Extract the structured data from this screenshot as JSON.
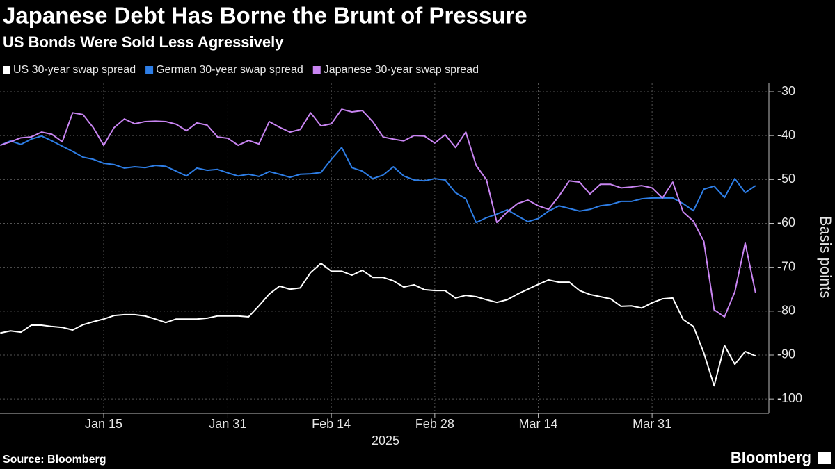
{
  "chart_data": {
    "type": "line",
    "title": "Japanese Debt Has Borne the Brunt of Pressure",
    "subtitle": "US Bonds Were Sold Less Agressively",
    "xlabel": "2025",
    "ylabel": "Basis points",
    "source": "Source: Bloomberg",
    "brand": "Bloomberg",
    "categories": [
      null,
      null,
      null,
      null,
      null,
      null,
      null,
      null,
      null,
      null,
      "Jan 15",
      null,
      null,
      null,
      null,
      null,
      null,
      null,
      null,
      null,
      null,
      null,
      "Jan 31",
      null,
      null,
      null,
      null,
      null,
      null,
      null,
      null,
      null,
      "Feb 14",
      null,
      null,
      null,
      null,
      null,
      null,
      null,
      null,
      null,
      "Feb 28",
      null,
      null,
      null,
      null,
      null,
      null,
      null,
      null,
      null,
      "Mar 14",
      null,
      null,
      null,
      null,
      null,
      null,
      null,
      null,
      null,
      null,
      "Mar 31",
      null,
      null,
      null,
      null,
      null,
      null,
      null,
      null,
      null,
      null
    ],
    "series": [
      {
        "name": "US 30-year swap spread",
        "color": "#ffffff",
        "values": [
          -85.0,
          -84.5,
          -84.8,
          -83.2,
          -83.2,
          -83.5,
          -83.7,
          -84.3,
          -83.1,
          -82.4,
          -81.8,
          -81.0,
          -80.8,
          -80.8,
          -81.1,
          -81.8,
          -82.6,
          -81.8,
          -81.8,
          -81.8,
          -81.6,
          -81.1,
          -81.1,
          -81.1,
          -81.3,
          -78.8,
          -76.1,
          -74.3,
          -75.0,
          -74.7,
          -71.2,
          -69.1,
          -70.9,
          -70.9,
          -71.8,
          -70.7,
          -72.3,
          -72.3,
          -73.1,
          -74.5,
          -74.0,
          -75.1,
          -75.3,
          -75.3,
          -77.0,
          -76.4,
          -76.7,
          -77.4,
          -78.0,
          -77.4,
          -76.1,
          -75.0,
          -73.9,
          -72.9,
          -73.4,
          -73.4,
          -75.3,
          -76.2,
          -76.7,
          -77.2,
          -78.9,
          -78.8,
          -79.3,
          -78.1,
          -77.2,
          -77.0,
          -81.9,
          -83.5,
          -89.5,
          -97.0,
          -87.8,
          -92.1,
          -89.2,
          -90.2
        ]
      },
      {
        "name": "German 30-year swap spread",
        "color": "#2e7ee6",
        "values": [
          -42.2,
          -41.2,
          -42.0,
          -40.8,
          -40.1,
          -41.2,
          -42.4,
          -43.6,
          -44.9,
          -45.4,
          -46.3,
          -46.6,
          -47.4,
          -47.1,
          -47.3,
          -46.8,
          -47.0,
          -48.1,
          -49.2,
          -47.4,
          -47.9,
          -47.7,
          -48.5,
          -49.2,
          -48.8,
          -49.3,
          -48.2,
          -48.8,
          -49.5,
          -48.8,
          -48.7,
          -48.4,
          -45.4,
          -42.7,
          -47.3,
          -48.1,
          -49.8,
          -49.0,
          -47.1,
          -49.2,
          -50.1,
          -50.3,
          -49.8,
          -50.1,
          -53.0,
          -54.4,
          -59.8,
          -58.7,
          -57.9,
          -56.9,
          -58.3,
          -59.6,
          -58.9,
          -57.2,
          -56.0,
          -56.6,
          -57.2,
          -56.8,
          -56.0,
          -55.7,
          -55.0,
          -55.0,
          -54.4,
          -54.2,
          -54.2,
          -54.2,
          -55.5,
          -57.1,
          -52.2,
          -51.5,
          -54.1,
          -49.8,
          -53.0,
          -51.4
        ]
      },
      {
        "name": "Japanese 30-year swap spread",
        "color": "#c985f2",
        "values": [
          -42.2,
          -41.4,
          -40.5,
          -40.3,
          -39.2,
          -39.7,
          -41.4,
          -34.8,
          -35.2,
          -38.2,
          -42.2,
          -38.2,
          -36.2,
          -37.3,
          -36.8,
          -36.7,
          -36.8,
          -37.4,
          -38.9,
          -37.1,
          -37.6,
          -40.3,
          -40.6,
          -42.2,
          -41.1,
          -41.9,
          -36.8,
          -38.1,
          -39.2,
          -38.6,
          -34.8,
          -37.8,
          -37.3,
          -34.0,
          -34.6,
          -34.3,
          -36.8,
          -40.3,
          -40.8,
          -41.2,
          -40.0,
          -40.1,
          -41.7,
          -39.8,
          -42.7,
          -39.2,
          -46.8,
          -50.1,
          -59.8,
          -57.4,
          -55.5,
          -54.7,
          -56.0,
          -56.8,
          -53.8,
          -50.3,
          -50.6,
          -53.3,
          -51.1,
          -51.1,
          -51.9,
          -51.7,
          -51.4,
          -51.9,
          -54.2,
          -50.6,
          -57.4,
          -59.5,
          -64.1,
          -79.7,
          -81.3,
          -75.6,
          -64.5,
          -75.8
        ]
      }
    ],
    "ylim": [
      -103.3,
      -28.1
    ],
    "yticks": [
      -30,
      -40,
      -50,
      -60,
      -70,
      -80,
      -90,
      -100
    ],
    "grid": true
  }
}
